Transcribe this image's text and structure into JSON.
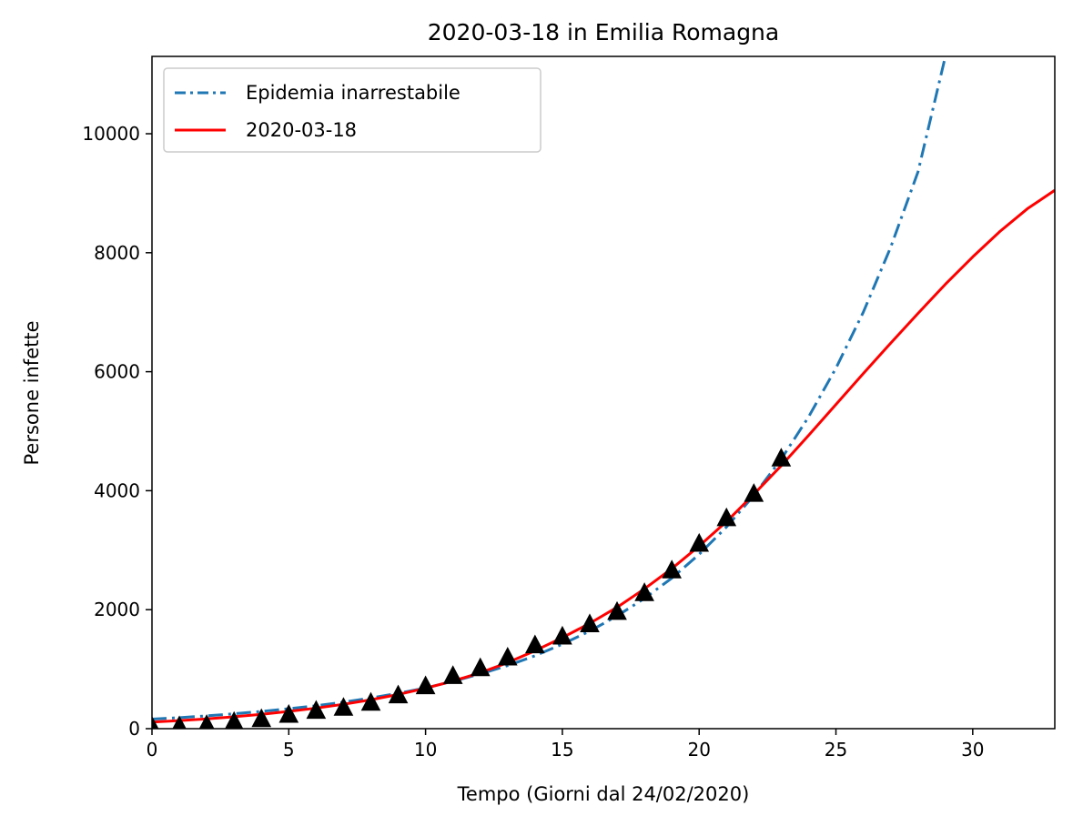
{
  "chart_data": {
    "type": "line",
    "title": "2020-03-18 in Emilia Romagna",
    "xlabel": "Tempo (Giorni dal 24/02/2020)",
    "ylabel": "Persone infette",
    "xlim": [
      0,
      33
    ],
    "ylim": [
      0,
      11300
    ],
    "xticks": [
      0,
      5,
      10,
      15,
      20,
      25,
      30
    ],
    "yticks": [
      0,
      2000,
      4000,
      6000,
      8000,
      10000
    ],
    "grid": false,
    "legend": {
      "position": "top-left"
    },
    "series": [
      {
        "name": "Epidemia inarrestabile",
        "style": "dashdot",
        "color": "#1f77b4",
        "x": [
          0,
          1,
          2,
          3,
          4,
          5,
          6,
          7,
          8,
          9,
          10,
          11,
          12,
          13,
          14,
          15,
          16,
          17,
          18,
          19,
          20,
          21,
          22,
          23,
          24,
          25,
          26,
          27,
          28,
          29
        ],
        "y": [
          160,
          185,
          215,
          250,
          290,
          335,
          385,
          445,
          515,
          595,
          685,
          795,
          920,
          1060,
          1225,
          1420,
          1640,
          1895,
          2190,
          2530,
          2930,
          3390,
          3920,
          4530,
          5240,
          6060,
          7000,
          8090,
          9360,
          11300
        ]
      },
      {
        "name": "2020-03-18",
        "style": "solid",
        "color": "#ff0000",
        "x": [
          0,
          1,
          2,
          3,
          4,
          5,
          6,
          7,
          8,
          9,
          10,
          11,
          12,
          13,
          14,
          15,
          16,
          17,
          18,
          19,
          20,
          21,
          22,
          23,
          24,
          25,
          26,
          27,
          28,
          29,
          30,
          31,
          32,
          33
        ],
        "y": [
          110,
          135,
          165,
          200,
          240,
          290,
          345,
          410,
          485,
          575,
          680,
          800,
          940,
          1110,
          1310,
          1530,
          1770,
          2040,
          2350,
          2690,
          3070,
          3480,
          3940,
          4420,
          4930,
          5450,
          5970,
          6480,
          6980,
          7470,
          7930,
          8360,
          8740,
          9050
        ]
      },
      {
        "name": "",
        "style": "markers-triangle",
        "color": "#000000",
        "x": [
          0,
          1,
          2,
          3,
          4,
          5,
          6,
          7,
          8,
          9,
          10,
          11,
          12,
          13,
          14,
          15,
          16,
          17,
          18,
          19,
          20,
          21,
          22,
          23
        ],
        "y": [
          18,
          26,
          47,
          97,
          145,
          217,
          285,
          335,
          420,
          544,
          698,
          870,
          1002,
          1180,
          1386,
          1533,
          1739,
          1947,
          2263,
          2644,
          3093,
          3522,
          3931,
          4525
        ]
      }
    ]
  }
}
